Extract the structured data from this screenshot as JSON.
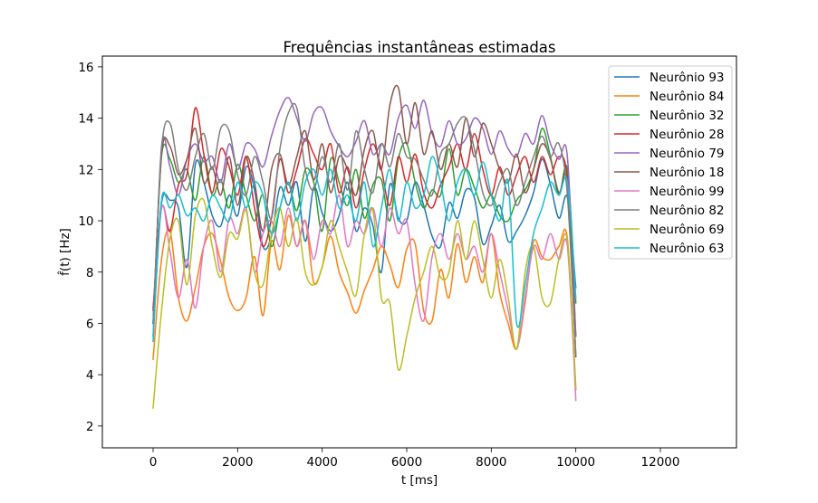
{
  "chart_data": {
    "type": "line",
    "title": "Frequências instantâneas estimadas",
    "xlabel": "t [ms]",
    "ylabel": "f̂(t) [Hz]",
    "xlim": [
      -1200,
      13800
    ],
    "ylim": [
      1.15,
      16.42
    ],
    "x_ticks": [
      0,
      2000,
      4000,
      6000,
      8000,
      10000,
      12000
    ],
    "y_ticks": [
      2,
      4,
      6,
      8,
      10,
      12,
      14,
      16
    ],
    "grid": false,
    "legend": "upper right",
    "x": [
      0,
      200,
      400,
      600,
      800,
      1000,
      1200,
      1400,
      1600,
      1800,
      2000,
      2200,
      2400,
      2600,
      2800,
      3000,
      3200,
      3400,
      3600,
      3800,
      4000,
      4200,
      4400,
      4600,
      4800,
      5000,
      5200,
      5400,
      5600,
      5800,
      6000,
      6200,
      6400,
      6600,
      6800,
      7000,
      7200,
      7400,
      7600,
      7800,
      8000,
      8200,
      8400,
      8600,
      8800,
      9000,
      9200,
      9400,
      9600,
      9800,
      10000
    ],
    "series": [
      {
        "name": "Neurônio 93",
        "color": "#1f77b4",
        "values": [
          6.5,
          10.7,
          10.8,
          10.5,
          8.2,
          12.2,
          11.5,
          10.2,
          9.8,
          11.0,
          10.2,
          12.1,
          11.2,
          9.0,
          9.4,
          11.3,
          10.6,
          11.5,
          9.2,
          11.3,
          10.3,
          9.6,
          10.2,
          11.5,
          9.6,
          10.5,
          9.8,
          8.0,
          11.4,
          10.1,
          10.0,
          11.5,
          10.6,
          9.4,
          9.0,
          10.7,
          10.1,
          11.2,
          10.9,
          9.1,
          9.8,
          10.6,
          9.2,
          9.6,
          10.2,
          11.1,
          12.4,
          11.4,
          10.1,
          10.9,
          7.4
        ]
      },
      {
        "name": "Neurônio 84",
        "color": "#ff7f0e",
        "values": [
          4.6,
          8.5,
          9.6,
          7.0,
          6.1,
          7.4,
          9.0,
          9.5,
          8.4,
          7.0,
          6.5,
          7.0,
          8.6,
          6.3,
          9.2,
          8.1,
          10.2,
          9.0,
          10.0,
          7.6,
          8.2,
          9.4,
          8.0,
          7.2,
          6.4,
          7.3,
          8.1,
          9.0,
          8.3,
          7.4,
          8.9,
          9.1,
          6.5,
          6.1,
          8.1,
          7.0,
          9.1,
          7.6,
          8.6,
          7.6,
          9.5,
          7.2,
          6.0,
          5.0,
          6.8,
          9.2,
          8.6,
          8.5,
          9.0,
          9.3,
          3.4
        ]
      },
      {
        "name": "Neurônio 32",
        "color": "#2ca02c",
        "values": [
          6.0,
          12.5,
          12.4,
          11.5,
          12.0,
          10.8,
          12.5,
          11.0,
          11.6,
          10.5,
          12.2,
          11.0,
          10.0,
          11.0,
          9.0,
          10.5,
          11.5,
          10.4,
          12.0,
          11.5,
          9.6,
          12.4,
          11.5,
          10.6,
          12.0,
          10.1,
          11.4,
          11.6,
          10.0,
          12.4,
          13.0,
          11.5,
          10.5,
          11.2,
          11.0,
          12.8,
          11.0,
          12.0,
          11.3,
          10.5,
          11.0,
          10.2,
          10.0,
          10.8,
          11.2,
          12.0,
          13.6,
          12.5,
          11.0,
          12.0,
          6.8
        ]
      },
      {
        "name": "Neurônio 28",
        "color": "#d62728",
        "values": [
          6.6,
          10.5,
          9.6,
          11.4,
          11.8,
          14.4,
          12.6,
          11.1,
          12.8,
          12.1,
          11.0,
          12.5,
          10.5,
          9.0,
          10.1,
          12.4,
          11.1,
          12.0,
          13.2,
          12.6,
          12.0,
          13.0,
          11.1,
          12.1,
          10.5,
          12.0,
          13.0,
          12.0,
          10.6,
          12.5,
          11.5,
          12.6,
          11.1,
          10.5,
          11.4,
          12.1,
          13.0,
          12.0,
          13.4,
          12.0,
          11.0,
          12.1,
          11.0,
          11.8,
          12.5,
          11.5,
          12.5,
          11.8,
          12.5,
          11.6,
          5.5
        ]
      },
      {
        "name": "Neurônio 79",
        "color": "#9467bd",
        "values": [
          5.5,
          12.9,
          12.1,
          11.0,
          12.4,
          13.0,
          12.3,
          12.5,
          11.5,
          13.0,
          12.0,
          13.0,
          12.8,
          12.1,
          13.3,
          14.3,
          14.8,
          14.0,
          13.1,
          14.2,
          14.4,
          13.5,
          12.9,
          12.5,
          13.1,
          13.9,
          12.6,
          13.0,
          12.6,
          14.0,
          14.5,
          13.6,
          14.7,
          13.4,
          12.9,
          13.9,
          13.0,
          13.2,
          14.0,
          13.6,
          12.6,
          13.5,
          12.8,
          12.5,
          13.4,
          13.0,
          14.1,
          13.0,
          12.4,
          12.5,
          5.5
        ]
      },
      {
        "name": "Neurônio 18",
        "color": "#8c564b",
        "values": [
          6.0,
          12.6,
          12.9,
          11.8,
          12.4,
          13.6,
          11.5,
          12.1,
          11.0,
          12.5,
          10.6,
          12.5,
          11.5,
          9.6,
          12.0,
          12.6,
          11.4,
          12.5,
          13.5,
          11.6,
          13.0,
          11.1,
          12.5,
          12.0,
          11.0,
          12.8,
          13.5,
          12.0,
          14.5,
          15.2,
          13.0,
          14.6,
          12.6,
          13.5,
          12.0,
          13.0,
          12.1,
          14.0,
          12.5,
          13.8,
          13.0,
          12.0,
          11.5,
          12.6,
          11.1,
          12.0,
          13.0,
          12.4,
          11.1,
          11.5,
          4.7
        ]
      },
      {
        "name": "Neurônio 99",
        "color": "#e377c2",
        "values": [
          5.5,
          10.5,
          8.8,
          7.0,
          8.5,
          6.6,
          9.0,
          10.0,
          8.0,
          10.1,
          9.5,
          10.5,
          8.0,
          9.5,
          10.0,
          9.0,
          10.5,
          9.0,
          10.0,
          8.5,
          10.0,
          9.5,
          11.0,
          9.0,
          10.0,
          9.5,
          10.5,
          9.0,
          10.5,
          9.5,
          10.0,
          7.5,
          6.1,
          8.6,
          9.5,
          8.5,
          9.5,
          8.5,
          9.0,
          8.0,
          9.5,
          8.0,
          6.5,
          5.0,
          7.0,
          9.0,
          8.5,
          9.5,
          8.5,
          9.0,
          3.0
        ]
      },
      {
        "name": "Neurônio 82",
        "color": "#7f7f7f",
        "values": [
          6.0,
          12.8,
          13.8,
          12.0,
          11.2,
          12.5,
          13.4,
          12.0,
          13.6,
          13.5,
          11.8,
          11.0,
          12.5,
          11.5,
          10.1,
          12.8,
          14.2,
          14.4,
          12.0,
          11.2,
          12.5,
          11.5,
          13.0,
          11.2,
          13.5,
          12.0,
          11.1,
          13.0,
          12.1,
          13.4,
          12.5,
          12.4,
          11.6,
          11.0,
          12.6,
          13.0,
          13.8,
          14.0,
          12.8,
          11.1,
          10.6,
          11.5,
          12.0,
          10.6,
          11.5,
          12.5,
          13.3,
          12.5,
          13.0,
          11.0,
          4.8
        ]
      },
      {
        "name": "Neurônio 69",
        "color": "#bcbd22",
        "values": [
          2.7,
          6.5,
          9.3,
          10.0,
          7.5,
          10.2,
          10.8,
          9.0,
          7.8,
          9.5,
          9.3,
          10.4,
          8.0,
          7.5,
          9.5,
          10.5,
          9.0,
          10.1,
          8.0,
          7.5,
          8.2,
          10.0,
          9.0,
          8.0,
          7.1,
          9.5,
          10.4,
          7.0,
          6.8,
          4.2,
          5.5,
          7.0,
          8.0,
          9.0,
          7.8,
          8.0,
          10.0,
          8.5,
          10.0,
          8.5,
          7.0,
          8.5,
          7.0,
          5.0,
          8.0,
          9.0,
          7.0,
          6.8,
          8.5,
          9.2,
          3.5
        ]
      },
      {
        "name": "Neurônio 63",
        "color": "#17becf",
        "values": [
          5.3,
          10.8,
          10.5,
          11.0,
          10.2,
          10.5,
          10.0,
          11.0,
          10.5,
          10.0,
          11.5,
          10.5,
          11.5,
          11.0,
          9.5,
          10.5,
          11.5,
          10.0,
          11.5,
          12.0,
          11.0,
          12.0,
          10.5,
          11.0,
          10.0,
          11.5,
          9.0,
          10.5,
          12.0,
          10.0,
          11.5,
          10.5,
          11.0,
          12.5,
          11.5,
          10.0,
          11.5,
          12.0,
          11.0,
          12.3,
          11.0,
          10.0,
          11.5,
          6.0,
          7.5,
          9.5,
          10.5,
          11.5,
          11.0,
          11.5,
          7.0
        ]
      }
    ]
  }
}
